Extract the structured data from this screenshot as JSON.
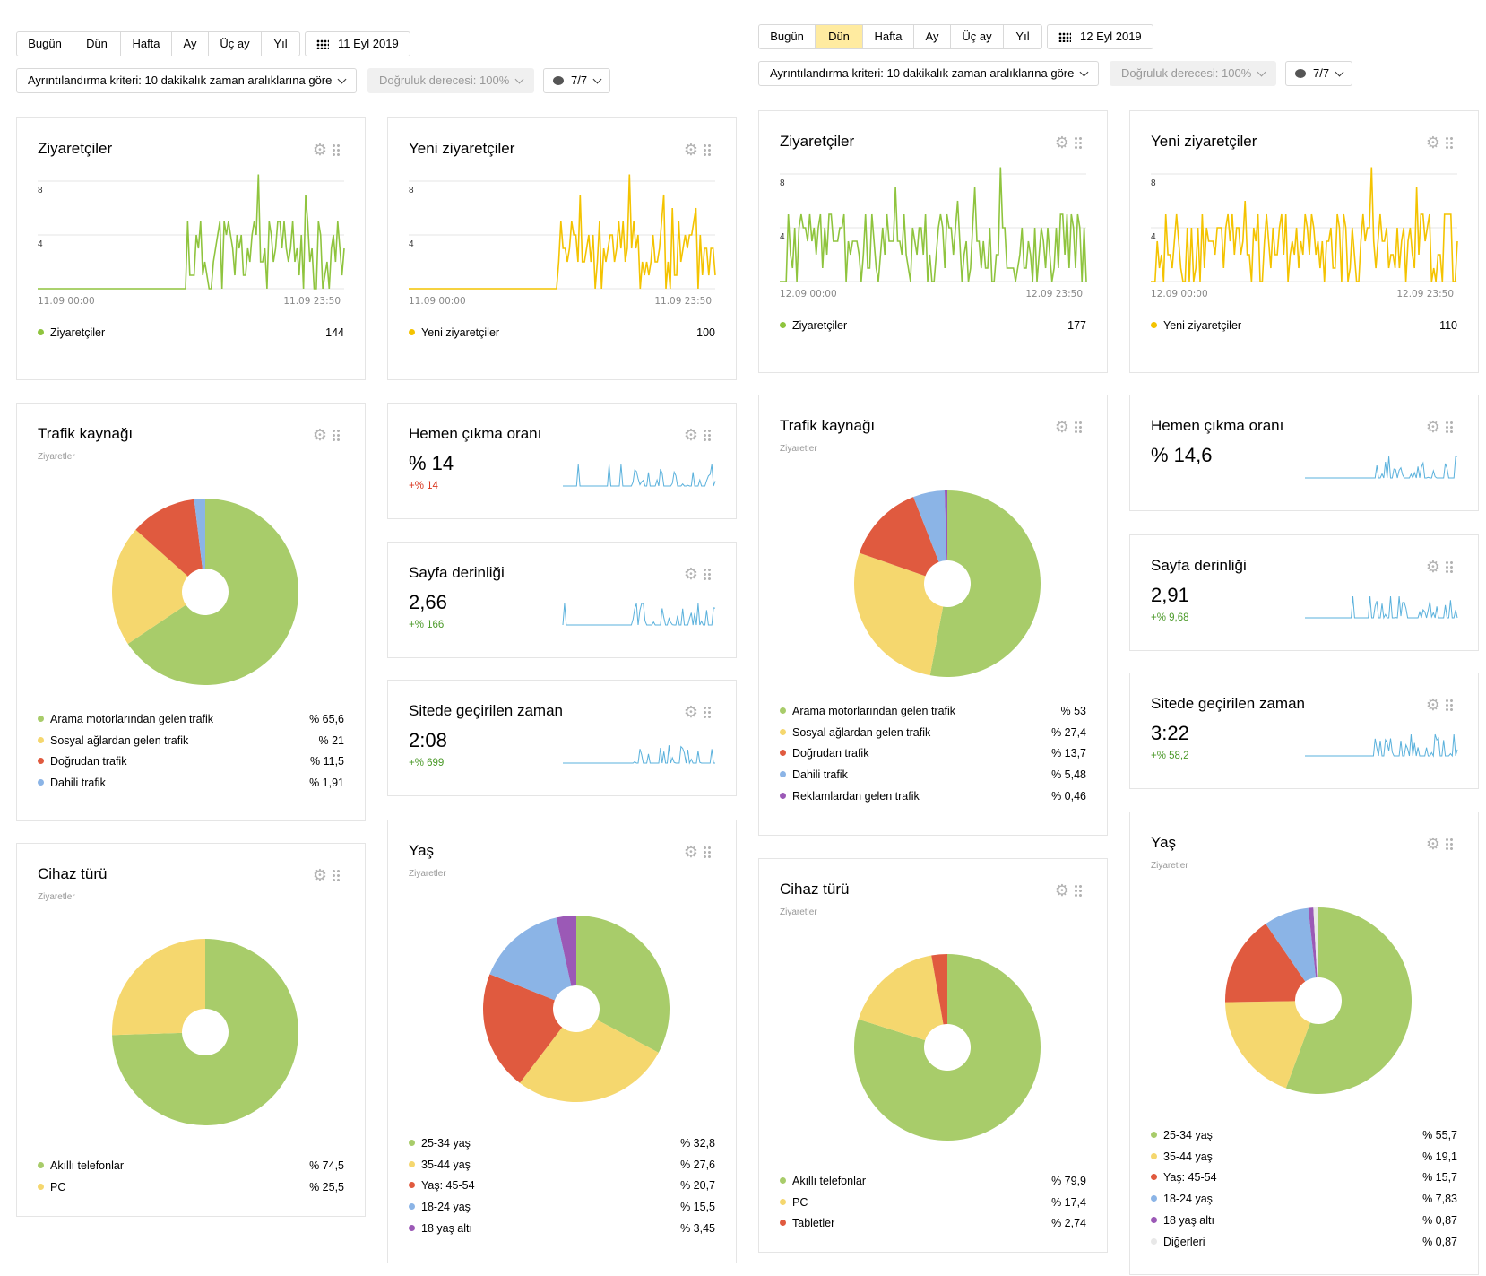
{
  "left": {
    "period_tabs": [
      "Bugün",
      "Dün",
      "Hafta",
      "Ay",
      "Üç ay",
      "Yıl"
    ],
    "date_label": "11 Eyl 2019",
    "detail_label": "Ayrıntılandırma kriteri: 10 dakikalık zaman aralıklarına göre",
    "accuracy_label": "Doğruluk derecesi: 100%",
    "segments_label": "7/7",
    "visitors": {
      "title": "Ziyaretçiler",
      "y_ticks": [
        "8",
        "4"
      ],
      "x_start": "11.09 00:00",
      "x_end": "11.09 23:50",
      "legend": "Ziyaretçiler",
      "total": "144",
      "color": "#8fc43e"
    },
    "new_visitors": {
      "title": "Yeni ziyaretçiler",
      "y_ticks": [
        "8",
        "4"
      ],
      "x_start": "11.09 00:00",
      "x_end": "11.09 23:50",
      "legend": "Yeni ziyaretçiler",
      "total": "100",
      "color": "#f4c300"
    },
    "traffic": {
      "title": "Trafik kaynağı",
      "subtitle": "Ziyaretler",
      "items": [
        {
          "label": "Arama motorlarından gelen trafik",
          "value": "% 65,6",
          "pct": 65.6,
          "color": "#a8cc6a"
        },
        {
          "label": "Sosyal ağlardan gelen trafik",
          "value": "% 21",
          "pct": 21,
          "color": "#f5d76e"
        },
        {
          "label": "Doğrudan trafik",
          "value": "% 11,5",
          "pct": 11.5,
          "color": "#e05a3f"
        },
        {
          "label": "Dahili trafik",
          "value": "% 1,91",
          "pct": 1.91,
          "color": "#8bb4e6"
        }
      ]
    },
    "bounce": {
      "title": "Hemen çıkma oranı",
      "value": "% 14",
      "delta": "+% 14",
      "delta_color": "#d9371f"
    },
    "depth": {
      "title": "Sayfa derinliği",
      "value": "2,66",
      "delta": "+% 166",
      "delta_color": "#4c9a2a"
    },
    "time": {
      "title": "Sitede geçirilen zaman",
      "value": "2:08",
      "delta": "+% 699",
      "delta_color": "#4c9a2a"
    },
    "device": {
      "title": "Cihaz türü",
      "subtitle": "Ziyaretler",
      "items": [
        {
          "label": "Akıllı telefonlar",
          "value": "% 74,5",
          "pct": 74.5,
          "color": "#a8cc6a"
        },
        {
          "label": "PC",
          "value": "% 25,5",
          "pct": 25.5,
          "color": "#f5d76e"
        }
      ]
    },
    "age": {
      "title": "Yaş",
      "subtitle": "Ziyaretler",
      "items": [
        {
          "label": "25-34 yaş",
          "value": "% 32,8",
          "pct": 32.8,
          "color": "#a8cc6a"
        },
        {
          "label": "35-44 yaş",
          "value": "% 27,6",
          "pct": 27.6,
          "color": "#f5d76e"
        },
        {
          "label": "Yaş: 45-54",
          "value": "% 20,7",
          "pct": 20.7,
          "color": "#e05a3f"
        },
        {
          "label": "18-24 yaş",
          "value": "% 15,5",
          "pct": 15.5,
          "color": "#8bb4e6"
        },
        {
          "label": "18 yaş altı",
          "value": "% 3,45",
          "pct": 3.45,
          "color": "#9b59b6"
        }
      ]
    }
  },
  "right": {
    "period_tabs": [
      "Bugün",
      "Dün",
      "Hafta",
      "Ay",
      "Üç ay",
      "Yıl"
    ],
    "selected_tab": "Dün",
    "date_label": "12 Eyl 2019",
    "detail_label": "Ayrıntılandırma kriteri: 10 dakikalık zaman aralıklarına göre",
    "accuracy_label": "Doğruluk derecesi: 100%",
    "segments_label": "7/7",
    "visitors": {
      "title": "Ziyaretçiler",
      "y_ticks": [
        "8",
        "4"
      ],
      "x_start": "12.09 00:00",
      "x_end": "12.09 23:50",
      "legend": "Ziyaretçiler",
      "total": "177",
      "color": "#8fc43e"
    },
    "new_visitors": {
      "title": "Yeni ziyaretçiler",
      "y_ticks": [
        "8",
        "4"
      ],
      "x_start": "12.09 00:00",
      "x_end": "12.09 23:50",
      "legend": "Yeni ziyaretçiler",
      "total": "110",
      "color": "#f4c300"
    },
    "traffic": {
      "title": "Trafik kaynağı",
      "subtitle": "Ziyaretler",
      "items": [
        {
          "label": "Arama motorlarından gelen trafik",
          "value": "% 53",
          "pct": 53,
          "color": "#a8cc6a"
        },
        {
          "label": "Sosyal ağlardan gelen trafik",
          "value": "% 27,4",
          "pct": 27.4,
          "color": "#f5d76e"
        },
        {
          "label": "Doğrudan trafik",
          "value": "% 13,7",
          "pct": 13.7,
          "color": "#e05a3f"
        },
        {
          "label": "Dahili trafik",
          "value": "% 5,48",
          "pct": 5.48,
          "color": "#8bb4e6"
        },
        {
          "label": "Reklamlardan gelen trafik",
          "value": "% 0,46",
          "pct": 0.46,
          "color": "#9b59b6"
        }
      ]
    },
    "bounce": {
      "title": "Hemen çıkma oranı",
      "value": "% 14,6",
      "delta": "",
      "delta_color": "#d9371f"
    },
    "depth": {
      "title": "Sayfa derinliği",
      "value": "2,91",
      "delta": "+% 9,68",
      "delta_color": "#4c9a2a"
    },
    "time": {
      "title": "Sitede geçirilen zaman",
      "value": "3:22",
      "delta": "+% 58,2",
      "delta_color": "#4c9a2a"
    },
    "device": {
      "title": "Cihaz türü",
      "subtitle": "Ziyaretler",
      "items": [
        {
          "label": "Akıllı telefonlar",
          "value": "% 79,9",
          "pct": 79.9,
          "color": "#a8cc6a"
        },
        {
          "label": "PC",
          "value": "% 17,4",
          "pct": 17.4,
          "color": "#f5d76e"
        },
        {
          "label": "Tabletler",
          "value": "% 2,74",
          "pct": 2.74,
          "color": "#e05a3f"
        }
      ]
    },
    "age": {
      "title": "Yaş",
      "subtitle": "Ziyaretler",
      "items": [
        {
          "label": "25-34 yaş",
          "value": "% 55,7",
          "pct": 55.7,
          "color": "#a8cc6a"
        },
        {
          "label": "35-44 yaş",
          "value": "% 19,1",
          "pct": 19.1,
          "color": "#f5d76e"
        },
        {
          "label": "Yaş: 45-54",
          "value": "% 15,7",
          "pct": 15.7,
          "color": "#e05a3f"
        },
        {
          "label": "18-24 yaş",
          "value": "% 7,83",
          "pct": 7.83,
          "color": "#8bb4e6"
        },
        {
          "label": "18 yaş altı",
          "value": "% 0,87",
          "pct": 0.87,
          "color": "#9b59b6"
        },
        {
          "label": "Diğerleri",
          "value": "% 0,87",
          "pct": 0.87,
          "color": "#e8e8e8"
        }
      ]
    }
  },
  "icons": {
    "settings": "gear-icon",
    "drag": "grip-icon",
    "calendar": "calendar-icon",
    "segments": "comment-icon"
  }
}
